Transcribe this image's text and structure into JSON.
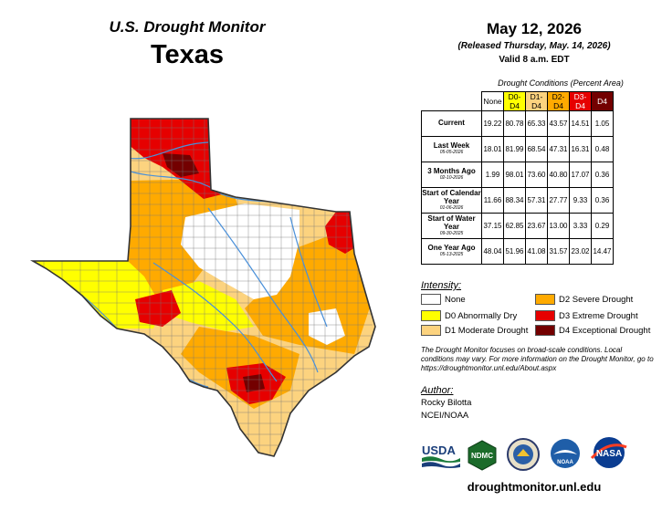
{
  "header": {
    "title": "U.S. Drought Monitor",
    "state": "Texas",
    "date": "May 12, 2026",
    "released": "(Released Thursday, May. 14, 2026)",
    "valid": "Valid 8 a.m. EDT"
  },
  "conditions": {
    "title": "Drought Conditions (Percent Area)",
    "columns": [
      "None",
      "D0-D4",
      "D1-D4",
      "D2-D4",
      "D3-D4",
      "D4"
    ],
    "column_colors": [
      "#ffffff",
      "#ffff00",
      "#fcd37f",
      "#ffaa00",
      "#e60000",
      "#730000"
    ],
    "column_text_colors": [
      "#000000",
      "#000000",
      "#000000",
      "#000000",
      "#ffffff",
      "#ffffff"
    ],
    "rows": [
      {
        "label": "Current",
        "sub": "",
        "values": [
          "19.22",
          "80.78",
          "65.33",
          "43.57",
          "14.51",
          "1.05"
        ]
      },
      {
        "label": "Last Week",
        "sub": "05-05-2026",
        "values": [
          "18.01",
          "81.99",
          "68.54",
          "47.31",
          "16.31",
          "0.48"
        ]
      },
      {
        "label": "3 Months Ago",
        "sub": "02-10-2026",
        "values": [
          "1.99",
          "98.01",
          "73.60",
          "40.80",
          "17.07",
          "0.36"
        ]
      },
      {
        "label": "Start of Calendar Year",
        "sub": "01-06-2026",
        "values": [
          "11.66",
          "88.34",
          "57.31",
          "27.77",
          "9.33",
          "0.36"
        ]
      },
      {
        "label": "Start of Water Year",
        "sub": "09-30-2025",
        "values": [
          "37.15",
          "62.85",
          "23.67",
          "13.00",
          "3.33",
          "0.29"
        ]
      },
      {
        "label": "One Year Ago",
        "sub": "05-13-2025",
        "values": [
          "48.04",
          "51.96",
          "41.08",
          "31.57",
          "23.02",
          "14.47"
        ]
      }
    ]
  },
  "legend": {
    "title": "Intensity:",
    "items": [
      {
        "label": "None",
        "color": "#ffffff"
      },
      {
        "label": "D0 Abnormally Dry",
        "color": "#ffff00"
      },
      {
        "label": "D1 Moderate Drought",
        "color": "#fcd37f"
      },
      {
        "label": "D2 Severe Drought",
        "color": "#ffaa00"
      },
      {
        "label": "D3 Extreme Drought",
        "color": "#e60000"
      },
      {
        "label": "D4 Exceptional Drought",
        "color": "#730000"
      }
    ]
  },
  "note": "The Drought Monitor focuses on broad-scale conditions. Local conditions may vary. For more information on the Drought Monitor, go to https://droughtmonitor.unl.edu/About.aspx",
  "author": {
    "title": "Author:",
    "name": "Rocky Bilotta",
    "org": "NCEI/NOAA"
  },
  "logos": [
    "USDA",
    "NDMC",
    "NOAA",
    "NASA"
  ],
  "website": "droughtmonitor.unl.edu",
  "map_colors": {
    "none": "#ffffff",
    "d0": "#ffff00",
    "d1": "#fcd37f",
    "d2": "#ffaa00",
    "d3": "#e60000",
    "d4": "#730000",
    "border": "#333333",
    "river": "#4a90d9"
  }
}
